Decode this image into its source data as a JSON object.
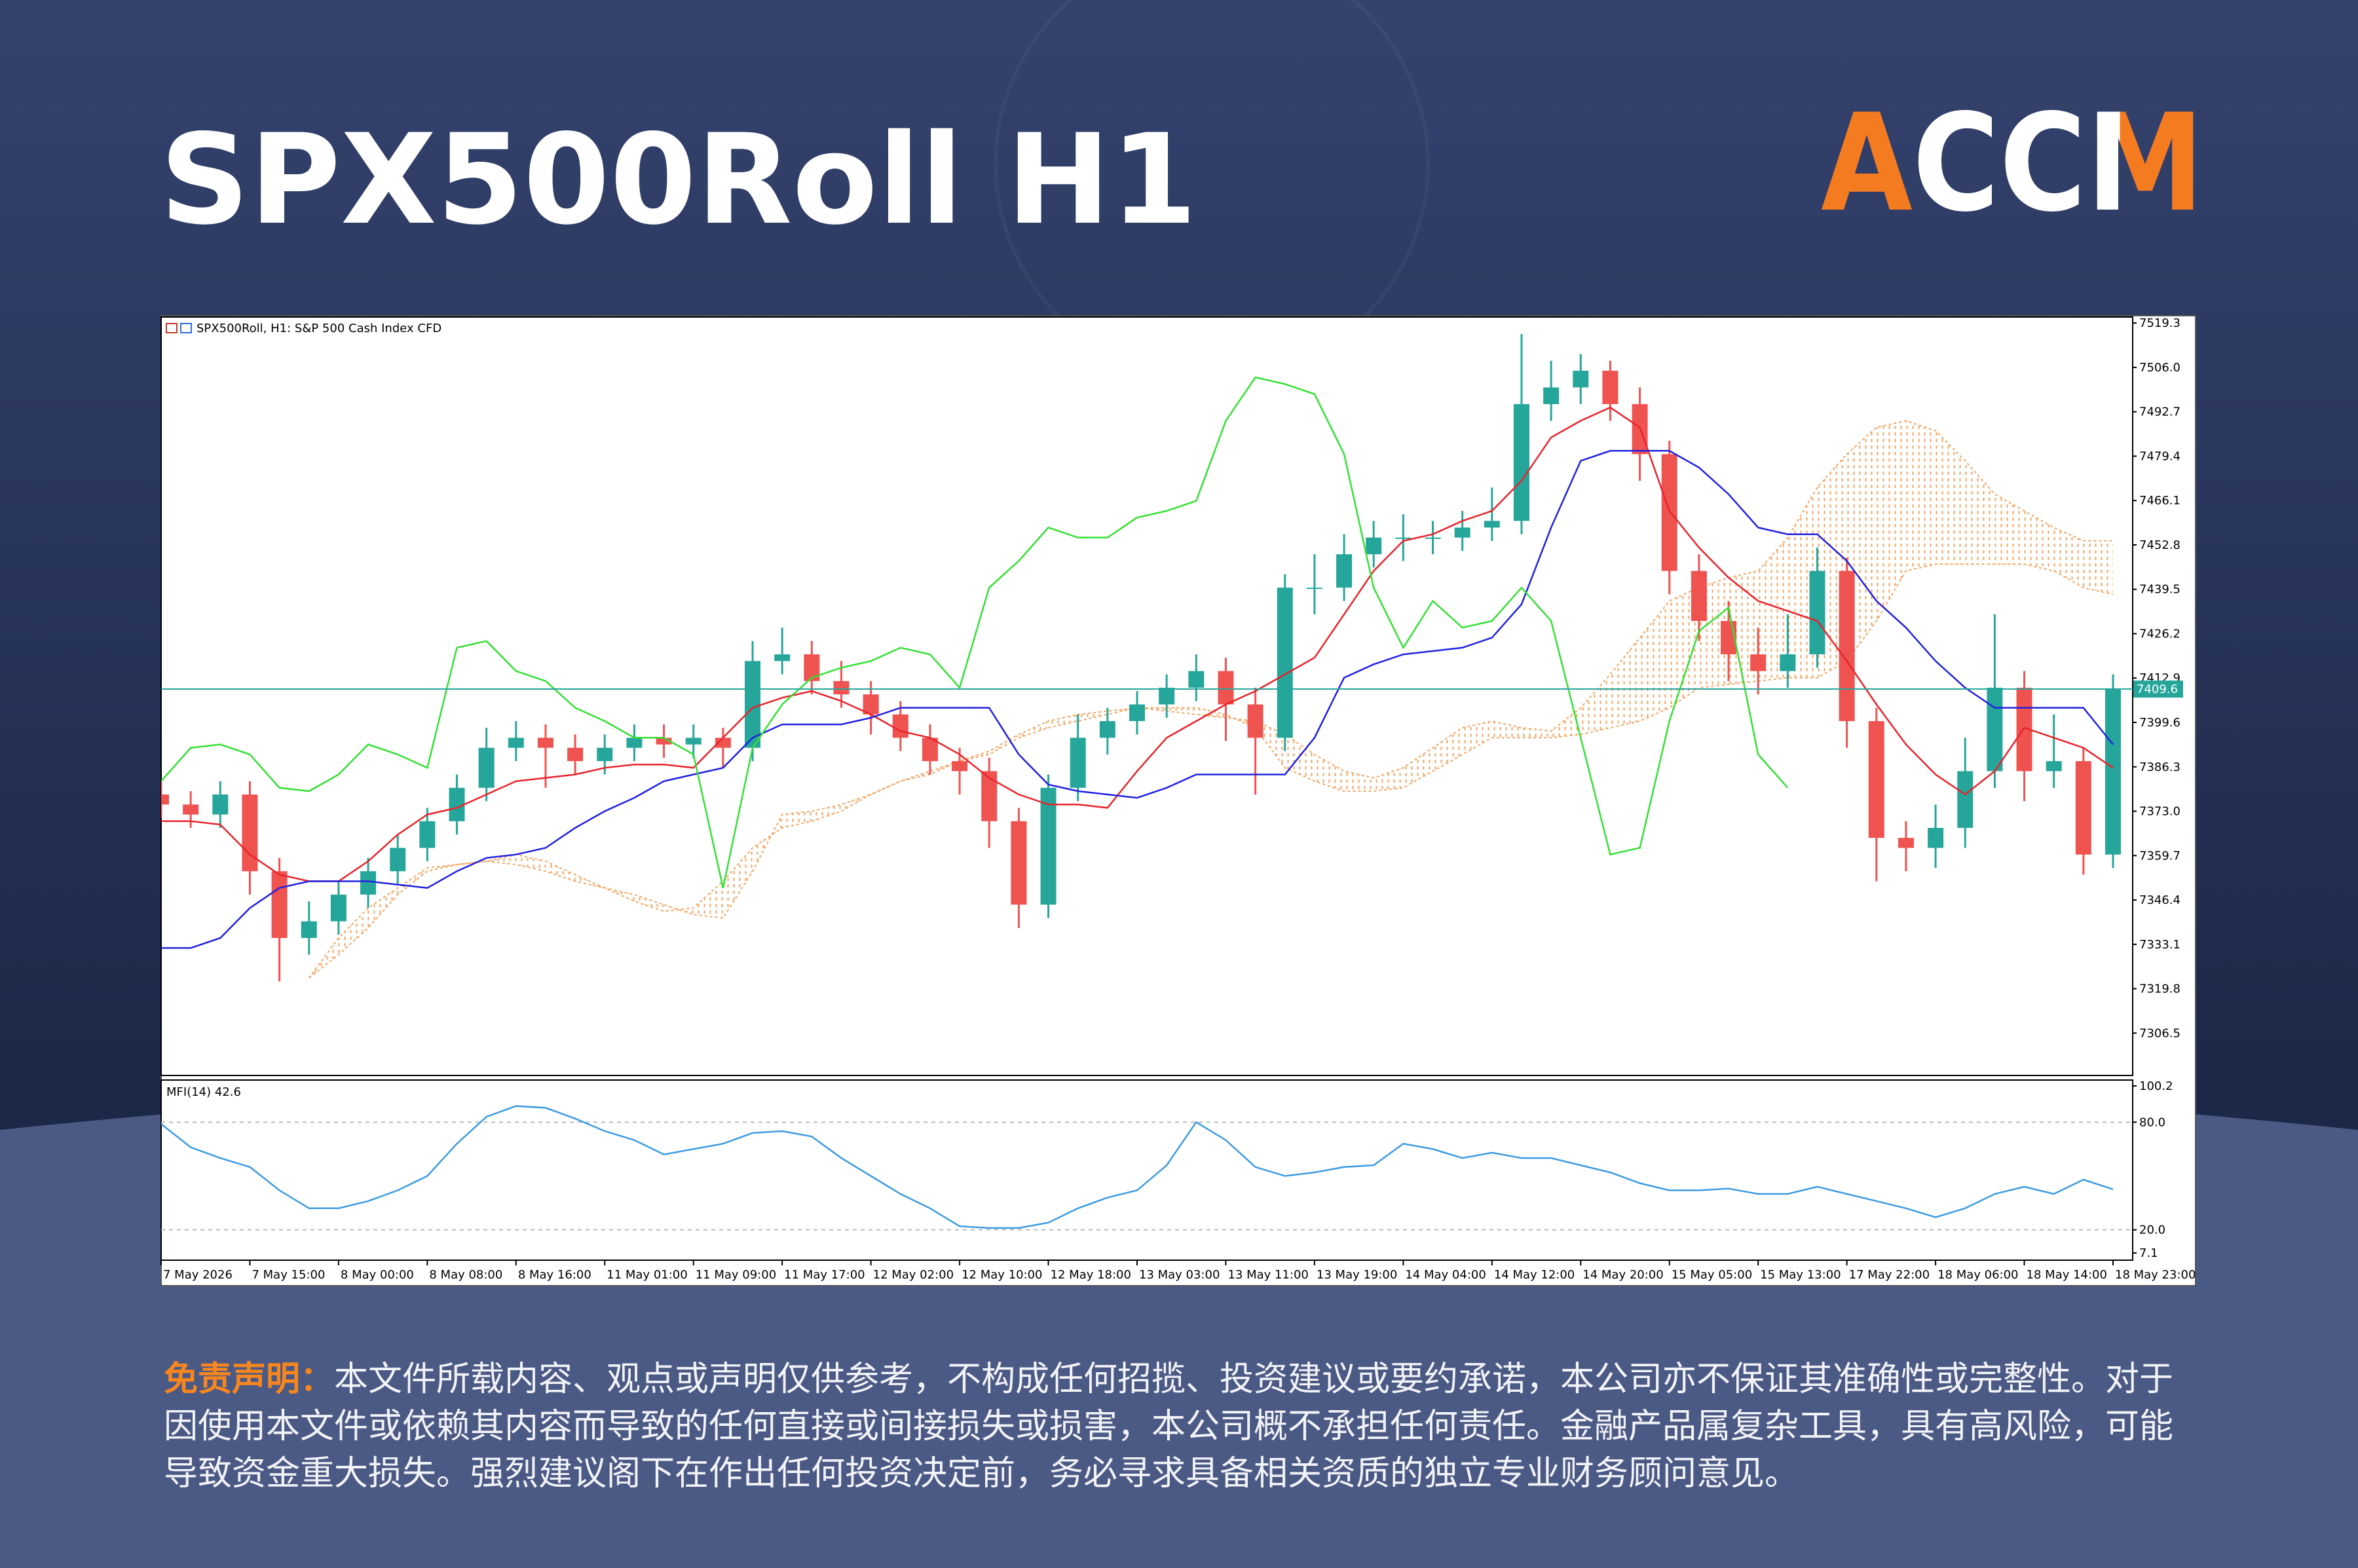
{
  "header": {
    "title": "SPX500Roll H1",
    "logo": "ACCM"
  },
  "chart_data": [
    {
      "type": "candlestick",
      "title": "SPX500Roll, H1:  S&P 500 Cash Index CFD",
      "categories": [
        "7 May 2026",
        null,
        null,
        "7 May 15:00",
        null,
        null,
        "8 May 00:00",
        null,
        null,
        "8 May 08:00",
        null,
        null,
        "8 May 16:00",
        null,
        null,
        "11 May 01:00",
        null,
        null,
        "11 May 09:00",
        null,
        null,
        "11 May 17:00",
        null,
        null,
        "12 May 02:00",
        null,
        null,
        "12 May 10:00",
        null,
        null,
        "12 May 18:00",
        null,
        null,
        "13 May 03:00",
        null,
        null,
        "13 May 11:00",
        null,
        null,
        "13 May 19:00",
        null,
        null,
        "14 May 04:00",
        null,
        null,
        "14 May 12:00",
        null,
        null,
        "14 May 20:00",
        null,
        null,
        "15 May 05:00",
        null,
        null,
        "15 May 13:00",
        null,
        null,
        "17 May 22:00",
        null,
        null,
        "18 May 06:00",
        null,
        null,
        "18 May 14:00",
        null,
        null,
        "18 May 23:00"
      ],
      "open": [
        7378,
        7375,
        7372,
        7378,
        7355,
        7335,
        7340,
        7348,
        7355,
        7362,
        7370,
        7380,
        7392,
        7395,
        7392,
        7388,
        7392,
        7395,
        7393,
        7395,
        7392,
        7418,
        7420,
        7412,
        7408,
        7402,
        7395,
        7388,
        7385,
        7370,
        7345,
        7380,
        7395,
        7400,
        7405,
        7410,
        7415,
        7405,
        7395,
        7440,
        7440,
        7450,
        7455,
        7455,
        7455,
        7458,
        7460,
        7495,
        7500,
        7505,
        7495,
        7480,
        7445,
        7430,
        7420,
        7415,
        7420,
        7445,
        7400,
        7365,
        7362,
        7368,
        7385,
        7410,
        7385,
        7388,
        7360
      ],
      "high": [
        7382,
        7379,
        7382,
        7382,
        7359,
        7346,
        7352,
        7359,
        7366,
        7374,
        7384,
        7398,
        7400,
        7399,
        7396,
        7396,
        7399,
        7399,
        7399,
        7398,
        7424,
        7428,
        7424,
        7418,
        7412,
        7406,
        7399,
        7392,
        7389,
        7374,
        7384,
        7402,
        7404,
        7409,
        7414,
        7420,
        7419,
        7410,
        7444,
        7450,
        7456,
        7460,
        7462,
        7460,
        7463,
        7470,
        7516,
        7508,
        7510,
        7508,
        7500,
        7484,
        7450,
        7436,
        7428,
        7432,
        7452,
        7449,
        7404,
        7370,
        7375,
        7395,
        7432,
        7415,
        7402,
        7392,
        7414
      ],
      "low": [
        7371,
        7368,
        7368,
        7348,
        7322,
        7330,
        7336,
        7344,
        7351,
        7358,
        7366,
        7376,
        7388,
        7380,
        7384,
        7384,
        7388,
        7389,
        7389,
        7386,
        7388,
        7414,
        7408,
        7404,
        7396,
        7391,
        7384,
        7378,
        7362,
        7338,
        7341,
        7376,
        7390,
        7396,
        7401,
        7406,
        7394,
        7378,
        7391,
        7432,
        7436,
        7446,
        7448,
        7450,
        7451,
        7454,
        7456,
        7490,
        7495,
        7490,
        7472,
        7438,
        7424,
        7412,
        7408,
        7410,
        7416,
        7392,
        7352,
        7355,
        7356,
        7362,
        7380,
        7376,
        7380,
        7354,
        7356
      ],
      "close": [
        7375,
        7372,
        7378,
        7355,
        7335,
        7340,
        7348,
        7355,
        7362,
        7370,
        7380,
        7392,
        7395,
        7392,
        7388,
        7392,
        7395,
        7393,
        7395,
        7392,
        7418,
        7420,
        7412,
        7408,
        7402,
        7395,
        7388,
        7385,
        7370,
        7345,
        7380,
        7395,
        7400,
        7405,
        7410,
        7415,
        7405,
        7395,
        7440,
        7440,
        7450,
        7455,
        7455,
        7455,
        7458,
        7460,
        7495,
        7500,
        7505,
        7495,
        7480,
        7445,
        7430,
        7420,
        7415,
        7420,
        7445,
        7400,
        7365,
        7362,
        7368,
        7385,
        7410,
        7385,
        7388,
        7360,
        7409.6
      ],
      "up_color": "#26a69a",
      "down_color": "#ef5350",
      "lines": [
        {
          "color": "#e8232b",
          "values": [
            7370,
            7370,
            7369,
            7360,
            7354,
            7352,
            7352,
            7358,
            7366,
            7372,
            7374,
            7378,
            7382,
            7383,
            7384,
            7386,
            7387,
            7387,
            7386,
            7395,
            7404,
            7407,
            7409,
            7406,
            7402,
            7397,
            7395,
            7390,
            7383,
            7378,
            7375,
            7375,
            7374,
            7385,
            7395,
            7400,
            7405,
            7409,
            7414,
            7419,
            7432,
            7445,
            7454,
            7456,
            7460,
            7463,
            7472,
            7485,
            7490,
            7494,
            7488,
            7463,
            7452,
            7443,
            7436,
            7433,
            7430,
            7418,
            7405,
            7393,
            7384,
            7378,
            7385,
            7398,
            7395,
            7392,
            7386
          ]
        },
        {
          "color": "#2020e0",
          "values": [
            7332,
            7332,
            7335,
            7344,
            7350,
            7352,
            7352,
            7352,
            7351,
            7350,
            7355,
            7359,
            7360,
            7362,
            7368,
            7373,
            7377,
            7382,
            7384,
            7386,
            7395,
            7399,
            7399,
            7399,
            7401,
            7404,
            7404,
            7404,
            7404,
            7390,
            7381,
            7379,
            7378,
            7377,
            7380,
            7384,
            7384,
            7384,
            7384,
            7395,
            7413,
            7417,
            7420,
            7421,
            7422,
            7425,
            7435,
            7458,
            7478,
            7481,
            7481,
            7481,
            7476,
            7468,
            7458,
            7456,
            7456,
            7448,
            7436,
            7428,
            7418,
            7410,
            7404,
            7404,
            7404,
            7404,
            7393
          ]
        },
        {
          "color": "#33e033",
          "values": [
            7382,
            7392,
            7393,
            7390,
            7380,
            7379,
            7384,
            7393,
            7390,
            7386,
            7422,
            7424,
            7415,
            7412,
            7404,
            7400,
            7395,
            7395,
            7390,
            7350,
            7392,
            7405,
            7413,
            7416,
            7418,
            7422,
            7420,
            7410,
            7440,
            7448,
            7458,
            7455,
            7455,
            7461,
            7463,
            7466,
            7490,
            7503,
            7501,
            7498,
            7480,
            7440,
            7422,
            7436,
            7428,
            7430,
            7440,
            7430,
            7395,
            7360,
            7362,
            7400,
            7427,
            7434,
            7390,
            7380,
            null,
            null,
            null,
            null,
            null,
            null,
            null,
            null,
            null,
            null,
            null
          ]
        }
      ],
      "cloud": {
        "color": "#f4a460",
        "span_a": [
          null,
          null,
          null,
          null,
          null,
          7323,
          7335,
          7344,
          7350,
          7356,
          7357,
          7358,
          7360,
          7358,
          7354,
          7350,
          7346,
          7343,
          7344,
          7352,
          7362,
          7368,
          7370,
          7373,
          7378,
          7382,
          7384,
          7388,
          7391,
          7396,
          7400,
          7402,
          7403,
          7404,
          7403,
          7402,
          7401,
          7400,
          7396,
          7390,
          7385,
          7383,
          7386,
          7392,
          7398,
          7400,
          7398,
          7397,
          7404,
          7414,
          7425,
          7436,
          7440,
          7443,
          7445,
          7455,
          7470,
          7480,
          7488,
          7490,
          7487,
          7478,
          7468,
          7463,
          7458,
          7454,
          7454
        ],
        "span_b": [
          null,
          null,
          null,
          null,
          null,
          7323,
          7330,
          7338,
          7348,
          7355,
          7357,
          7358,
          7357,
          7355,
          7352,
          7350,
          7348,
          7345,
          7342,
          7341,
          7355,
          7372,
          7373,
          7375,
          7378,
          7382,
          7385,
          7388,
          7390,
          7395,
          7398,
          7400,
          7402,
          7404,
          7404,
          7404,
          7402,
          7398,
          7386,
          7382,
          7379,
          7379,
          7380,
          7385,
          7390,
          7395,
          7395,
          7395,
          7396,
          7398,
          7400,
          7404,
          7410,
          7411,
          7412,
          7413,
          7413,
          7418,
          7430,
          7445,
          7447,
          7447,
          7447,
          7447,
          7445,
          7440,
          7438
        ]
      },
      "current_price": 7409.6,
      "price_line_color": "#26a69a",
      "ylim": [
        7293.8,
        7521.1
      ],
      "yticks": [
        7519.3,
        {
          "value": 7506,
          "label": "7506.0"
        },
        7492.7,
        7479.4,
        7466.1,
        7452.8,
        7439.5,
        7426.2,
        7412.9,
        7399.6,
        7386.3,
        {
          "value": 7373,
          "label": "7373.0"
        },
        7359.7,
        7346.4,
        7333.1,
        7319.8,
        7306.5
      ]
    },
    {
      "type": "line",
      "title": "MFI(14) 42.6",
      "color": "#3c9be0",
      "values": [
        79,
        66,
        60,
        55,
        42,
        32,
        32,
        36,
        42,
        50,
        68,
        83,
        89,
        88,
        82,
        75,
        70,
        62,
        65,
        68,
        74,
        75,
        72,
        60,
        50,
        40,
        32,
        22,
        21,
        21,
        24,
        32,
        38,
        42,
        56,
        80,
        70,
        55,
        50,
        52,
        55,
        56,
        68,
        65,
        60,
        63,
        60,
        60,
        56,
        52,
        46,
        42,
        42,
        43,
        40,
        40,
        44,
        40,
        36,
        32,
        27,
        32,
        40,
        44,
        40,
        48,
        42.6
      ],
      "ylim": [
        7.1,
        100.2
      ],
      "yticks": [
        100.2,
        {
          "value": 80,
          "label": "80.0"
        },
        {
          "value": 20,
          "label": "20.0"
        },
        7.1
      ]
    }
  ],
  "disclaimer": {
    "label": "免责声明：",
    "text": "本文件所载内容、观点或声明仅供参考，不构成任何招揽、投资建议或要约承诺，本公司亦不保证其准确性或完整性。对于因使用本文件或依赖其内容而导致的任何直接或间接损失或损害，本公司概不承担任何责任。金融产品属复杂工具，具有高风险，可能导致资金重大损失。强烈建议阁下在作出任何投资决定前，务必寻求具备相关资质的独立专业财务顾问意见。"
  }
}
